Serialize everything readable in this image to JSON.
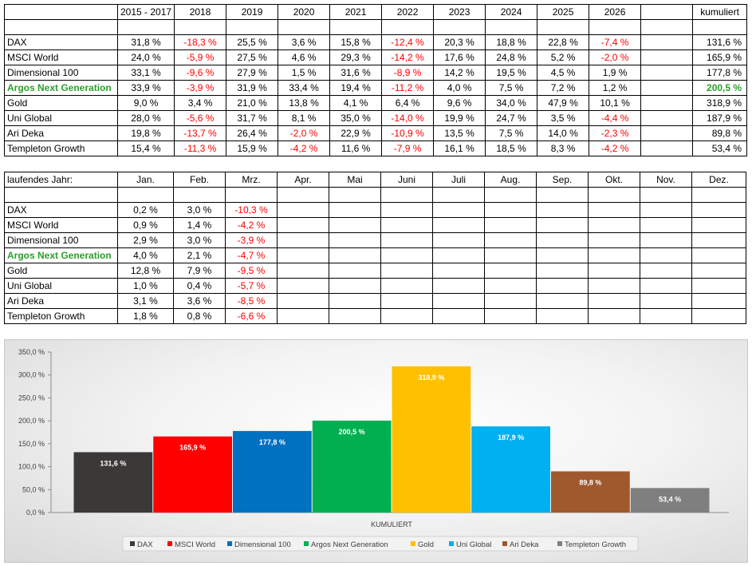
{
  "annual": {
    "headers": [
      "2015 - 2017",
      "2018",
      "2019",
      "2020",
      "2021",
      "2022",
      "2023",
      "2024",
      "2025",
      "2026",
      "",
      "kumuliert"
    ],
    "rows": [
      {
        "name": "DAX",
        "values": [
          "31,8 %",
          "-18,3 %",
          "25,5 %",
          "3,6 %",
          "15,8 %",
          "-12,4 %",
          "20,3 %",
          "18,8 %",
          "22,8 %",
          "-7,4 %"
        ],
        "cum": "131,6 %",
        "highlight": false
      },
      {
        "name": "MSCI World",
        "values": [
          "24,0 %",
          "-5,9 %",
          "27,5 %",
          "4,6 %",
          "29,3 %",
          "-14,2 %",
          "17,6 %",
          "24,8 %",
          "5,2 %",
          "-2,0 %"
        ],
        "cum": "165,9 %",
        "highlight": false
      },
      {
        "name": "Dimensional 100",
        "values": [
          "33,1 %",
          "-9,6 %",
          "27,9 %",
          "1,5 %",
          "31,6 %",
          "-8,9 %",
          "14,2 %",
          "19,5 %",
          "4,5 %",
          "1,9 %"
        ],
        "cum": "177,8 %",
        "highlight": false
      },
      {
        "name": "Argos Next Generation",
        "values": [
          "33,9 %",
          "-3,9 %",
          "31,9 %",
          "33,4 %",
          "19,4 %",
          "-11,2 %",
          "4,0 %",
          "7,5 %",
          "7,2 %",
          "1,2 %"
        ],
        "cum": "200,5 %",
        "highlight": true
      },
      {
        "name": "Gold",
        "values": [
          "9,0 %",
          "3,4 %",
          "21,0 %",
          "13,8 %",
          "4,1 %",
          "6,4 %",
          "9,6 %",
          "34,0 %",
          "47,9 %",
          "10,1 %"
        ],
        "cum": "318,9 %",
        "highlight": false
      },
      {
        "name": "Uni Global",
        "values": [
          "28,0 %",
          "-5,6 %",
          "31,7 %",
          "8,1 %",
          "35,0 %",
          "-14,0 %",
          "19,9 %",
          "24,7 %",
          "3,5 %",
          "-4,4 %"
        ],
        "cum": "187,9 %",
        "highlight": false
      },
      {
        "name": "Ari Deka",
        "values": [
          "19,8 %",
          "-13,7 %",
          "26,4 %",
          "-2,0 %",
          "22,9 %",
          "-10,9 %",
          "13,5 %",
          "7,5 %",
          "14,0 %",
          "-2,3 %"
        ],
        "cum": "89,8 %",
        "highlight": false
      },
      {
        "name": "Templeton Growth",
        "values": [
          "15,4 %",
          "-11,3 %",
          "15,9 %",
          "-4,2 %",
          "11,6 %",
          "-7,9 %",
          "16,1 %",
          "18,5 %",
          "8,3 %",
          "-4,2 %"
        ],
        "cum": "53,4 %",
        "highlight": false
      }
    ]
  },
  "monthly": {
    "title": "laufendes Jahr:",
    "headers": [
      "Jan.",
      "Feb.",
      "Mrz.",
      "Apr.",
      "Mai",
      "Juni",
      "Juli",
      "Aug.",
      "Sep.",
      "Okt.",
      "Nov.",
      "Dez."
    ],
    "rows": [
      {
        "name": "DAX",
        "values": [
          "0,2 %",
          "3,0 %",
          "-10,3 %"
        ],
        "highlight": false
      },
      {
        "name": "MSCI World",
        "values": [
          "0,9 %",
          "1,4 %",
          "-4,2 %"
        ],
        "highlight": false
      },
      {
        "name": "Dimensional 100",
        "values": [
          "2,9 %",
          "3,0 %",
          "-3,9 %"
        ],
        "highlight": false
      },
      {
        "name": "Argos Next Generation",
        "values": [
          "4,0 %",
          "2,1 %",
          "-4,7 %"
        ],
        "highlight": true
      },
      {
        "name": "Gold",
        "values": [
          "12,8 %",
          "7,9 %",
          "-9,5 %"
        ],
        "highlight": false
      },
      {
        "name": "Uni Global",
        "values": [
          "1,0 %",
          "0,4 %",
          "-5,7 %"
        ],
        "highlight": false
      },
      {
        "name": "Ari Deka",
        "values": [
          "3,1 %",
          "3,6 %",
          "-8,5 %"
        ],
        "highlight": false
      },
      {
        "name": "Templeton Growth",
        "values": [
          "1,8 %",
          "0,8 %",
          "-6,6 %"
        ],
        "highlight": false
      }
    ]
  },
  "chart_data": {
    "type": "bar",
    "categories": [
      "KUMULIERT"
    ],
    "xlabel": "KUMULIERT",
    "ylim": [
      0,
      350
    ],
    "yticks": [
      "0,0 %",
      "50,0 %",
      "100,0 %",
      "150,0 %",
      "200,0 %",
      "250,0 %",
      "300,0 %",
      "350,0 %"
    ],
    "grid": false,
    "legend": "bottom",
    "series": [
      {
        "name": "DAX",
        "value": 131.6,
        "label": "131,6 %",
        "color": "#3b3838"
      },
      {
        "name": "MSCI World",
        "value": 165.9,
        "label": "165,9 %",
        "color": "#ff0000"
      },
      {
        "name": "Dimensional 100",
        "value": 177.8,
        "label": "177,8 %",
        "color": "#0070c0"
      },
      {
        "name": "Argos Next Generation",
        "value": 200.5,
        "label": "200,5 %",
        "color": "#00b050"
      },
      {
        "name": "Gold",
        "value": 318.9,
        "label": "318,9 %",
        "color": "#ffc000"
      },
      {
        "name": "Uni Global",
        "value": 187.9,
        "label": "187,9 %",
        "color": "#00b0f0"
      },
      {
        "name": "Ari Deka",
        "value": 89.8,
        "label": "89,8 %",
        "color": "#a0582d"
      },
      {
        "name": "Templeton Growth",
        "value": 53.4,
        "label": "53,4 %",
        "color": "#7f7f7f"
      }
    ]
  }
}
